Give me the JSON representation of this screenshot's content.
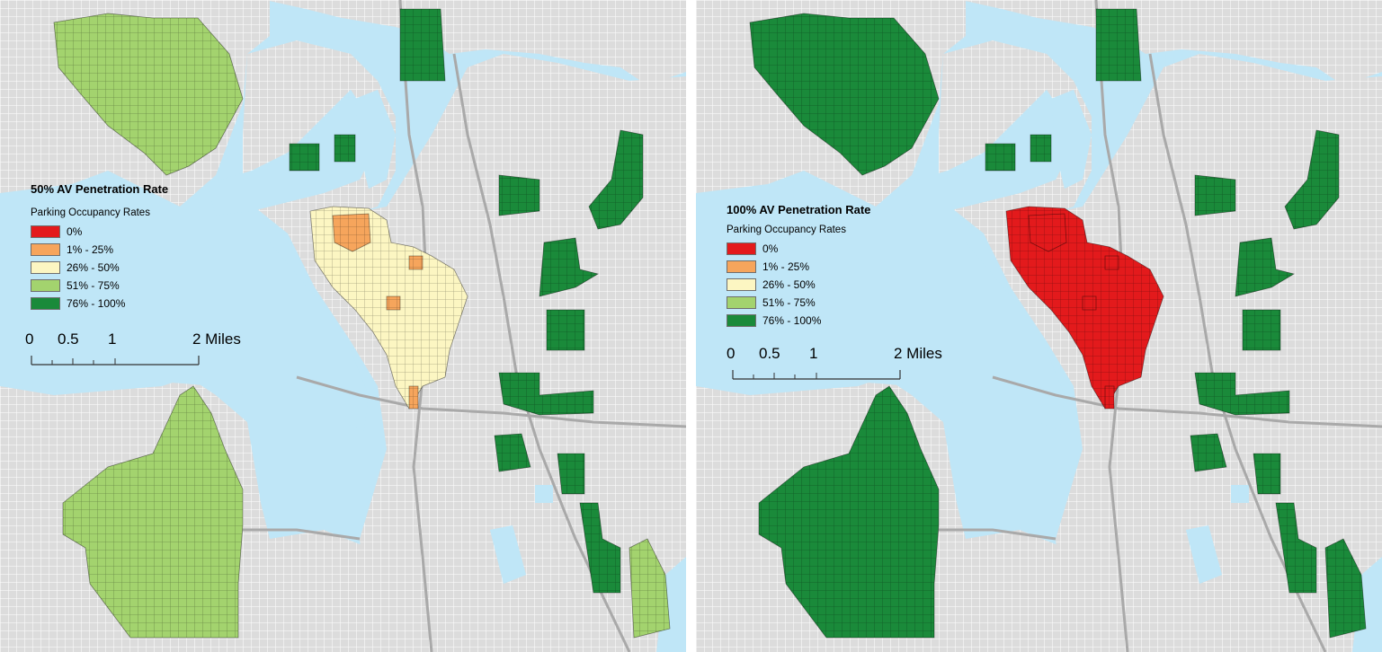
{
  "panels": [
    {
      "id": "left",
      "title": "50% AV Penetration Rate",
      "legend_subtitle": "Parking Occupancy Rates",
      "legend": [
        {
          "label": "0%",
          "color": "#e31a1c"
        },
        {
          "label": "1% - 25%",
          "color": "#f6a55c"
        },
        {
          "label": "26% - 50%",
          "color": "#fcf6c2"
        },
        {
          "label": "51% - 75%",
          "color": "#a3d36e"
        },
        {
          "label": "76% - 100%",
          "color": "#1a8a3a"
        }
      ],
      "scale_labels": [
        "0",
        "0.5",
        "1",
        "2 Miles"
      ],
      "fill_colors": {
        "northwest": "#a3d36e",
        "southwest": "#a3d36e",
        "east": "#1a8a3a",
        "southeast_small": "#a3d36e",
        "downtown_primary": "#fcf6c2",
        "downtown_secondary": "#f6a55c"
      }
    },
    {
      "id": "right",
      "title": "100% AV Penetration Rate",
      "legend_subtitle": "Parking Occupancy Rates",
      "legend": [
        {
          "label": "0%",
          "color": "#e31a1c"
        },
        {
          "label": "1% - 25%",
          "color": "#f6a55c"
        },
        {
          "label": "26% - 50%",
          "color": "#fcf6c2"
        },
        {
          "label": "51% - 75%",
          "color": "#a3d36e"
        },
        {
          "label": "76% - 100%",
          "color": "#1a8a3a"
        }
      ],
      "scale_labels": [
        "0",
        "0.5",
        "1",
        "2 Miles"
      ],
      "fill_colors": {
        "northwest": "#1a8a3a",
        "southwest": "#1a8a3a",
        "east": "#1a8a3a",
        "southeast_small": "#1a8a3a",
        "downtown_primary": "#e31a1c",
        "downtown_secondary": "#e31a1c"
      }
    }
  ],
  "colors": {
    "water": "#bfe6f7",
    "land": "#dcdcdc",
    "street_grid": "#ffffff",
    "highway": "#a9a9a9"
  }
}
